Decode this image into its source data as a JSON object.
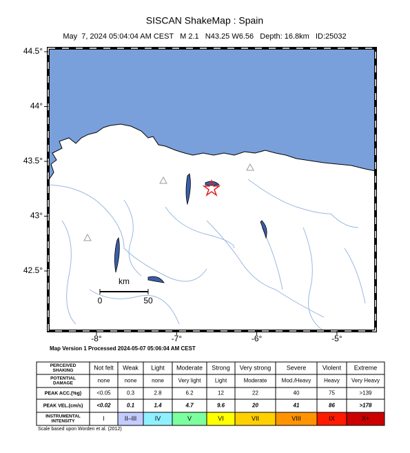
{
  "header": {
    "title": "SISCAN ShakeMap : Spain",
    "subtitle": "May  7, 2024 05:04:04 AM CEST   M 2.1   N43.25 W6.56   Depth: 16.8km   ID:25032"
  },
  "map": {
    "lat_ticks": [
      {
        "value": 44.5,
        "label": "44.5°"
      },
      {
        "value": 44,
        "label": "44°"
      },
      {
        "value": 43.5,
        "label": "43.5°"
      },
      {
        "value": 43,
        "label": "43°"
      },
      {
        "value": 42.5,
        "label": "42.5°"
      }
    ],
    "lon_ticks": [
      {
        "value": -8,
        "label": "-8°"
      },
      {
        "value": -7,
        "label": "-7°"
      },
      {
        "value": -6,
        "label": "-6°"
      },
      {
        "value": -5,
        "label": "-5°"
      }
    ],
    "scale_bar": {
      "unit": "km",
      "labels": [
        "0",
        "50"
      ]
    }
  },
  "processed": "Map Version 1 Processed 2024-05-07 05:06:04 AM CEST",
  "legend_table": {
    "rows": [
      {
        "label": [
          "PERCEIVED",
          "SHAKING"
        ],
        "cells": [
          "Not felt",
          "Weak",
          "Light",
          "Moderate",
          "Strong",
          "Very strong",
          "Severe",
          "Violent",
          "Extreme"
        ]
      },
      {
        "label": [
          "POTENTIAL",
          "DAMAGE"
        ],
        "cells": [
          "none",
          "none",
          "none",
          "Very light",
          "Light",
          "Moderate",
          "Mod./Heavy",
          "Heavy",
          "Very Heavy"
        ]
      },
      {
        "label": [
          "PEAK ACC.(%g)"
        ],
        "cells": [
          "<0.05",
          "0.3",
          "2.8",
          "6.2",
          "12",
          "22",
          "40",
          "75",
          ">139"
        ]
      },
      {
        "label": [
          "PEAK VEL.(cm/s)"
        ],
        "cells": [
          "<0.02",
          "0.1",
          "1.4",
          "4.7",
          "9.6",
          "20",
          "41",
          "86",
          ">178"
        ]
      },
      {
        "label": [
          "INSTRUMENTAL",
          "INTENSITY"
        ],
        "cells": [
          "I",
          "II–III",
          "IV",
          "V",
          "VI",
          "VII",
          "VIII",
          "IX",
          "X+"
        ]
      }
    ],
    "intensity_colors": [
      "#ffffff",
      "#c4ccff",
      "#8ff0ff",
      "#7cff9e",
      "#ffff00",
      "#ffd000",
      "#ff9400",
      "#ff1a00",
      "#cc0000"
    ]
  },
  "footnote": "Scale based upon Worden et al. (2012)"
}
